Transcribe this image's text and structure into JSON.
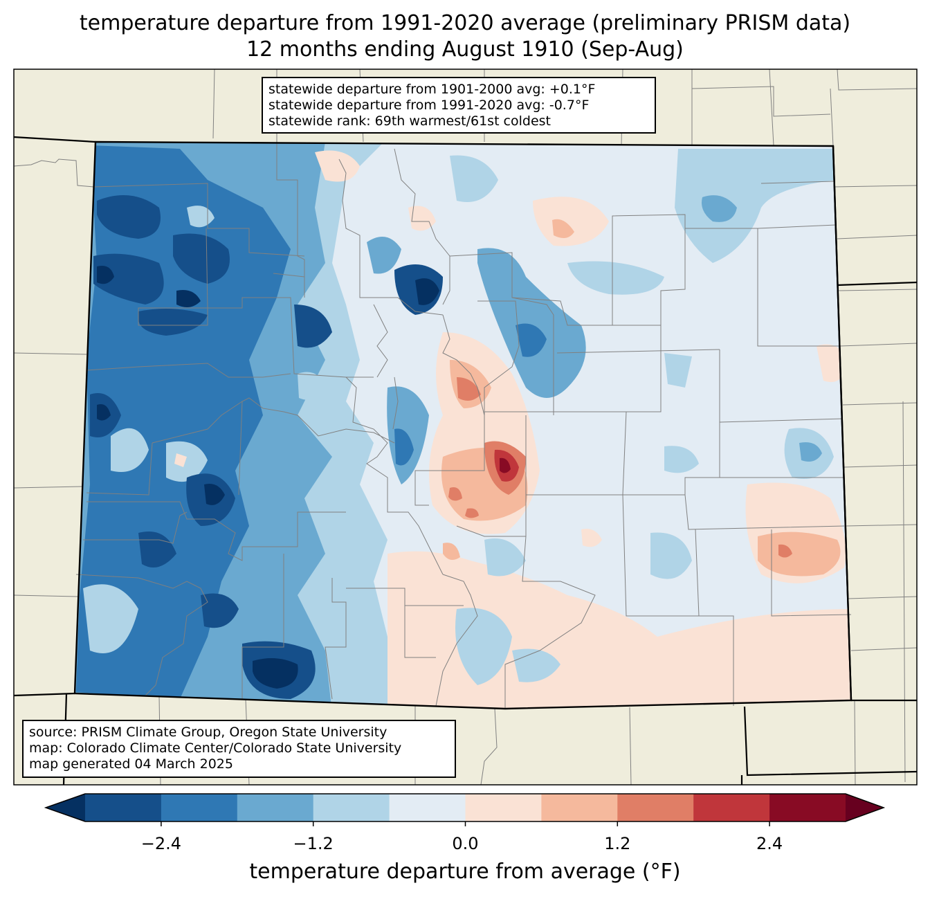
{
  "title": {
    "line1": "temperature departure from 1991-2020 average (preliminary PRISM data)",
    "line2": "12 months ending August 1910 (Sep-Aug)"
  },
  "stats": {
    "line1": "statewide departure from 1901-2000 avg: +0.1°F",
    "line2": "statewide departure from 1991-2020 avg: -0.7°F",
    "line3": "statewide rank: 69th warmest/61st coldest"
  },
  "source": {
    "line1": "source: PRISM Climate Group, Oregon State University",
    "line2": "map: Colorado Climate Center/Colorado State University",
    "line3": "map generated 04 March 2025"
  },
  "colorbar": {
    "label": "temperature departure from average (°F)",
    "ticks": [
      "−2.4",
      "−1.2",
      "0.0",
      "1.2",
      "2.4"
    ],
    "tick_values": [
      -2.4,
      -1.2,
      0.0,
      1.2,
      2.4
    ],
    "range": [
      -3.0,
      3.0
    ],
    "step": 0.6,
    "colors": [
      "#053061",
      "#154f8a",
      "#2f78b4",
      "#6aa9d0",
      "#b0d4e7",
      "#e3ecf4",
      "#fae2d5",
      "#f5b99d",
      "#e07e66",
      "#c0363b",
      "#880b24",
      "#67001f"
    ]
  },
  "map_colors": {
    "background": "#efeddc",
    "state_border": "#000000",
    "county_border": "#808080"
  }
}
